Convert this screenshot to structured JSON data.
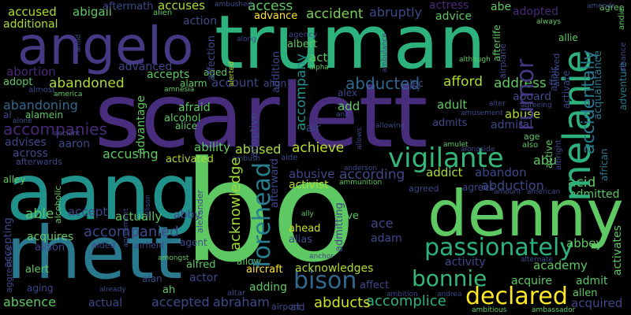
{
  "words": [
    {
      "text": "bo",
      "color": "#5ec962"
    },
    {
      "text": "scarlett",
      "color": "#472d7b"
    },
    {
      "text": "truman",
      "color": "#2db27d"
    },
    {
      "text": "aang",
      "color": "#21918c"
    },
    {
      "text": "rhett",
      "color": "#2a788e"
    },
    {
      "text": "denny",
      "color": "#5ec962"
    },
    {
      "text": "angelo",
      "color": "#443983"
    },
    {
      "text": "melanie",
      "color": "#2db27d"
    },
    {
      "text": "vigilante",
      "color": "#35b779"
    },
    {
      "text": "forehead",
      "color": "#277f8e"
    },
    {
      "text": "passionately",
      "color": "#2db27d"
    },
    {
      "text": "bonnie",
      "color": "#35b779"
    },
    {
      "text": "declared",
      "color": "#fde725"
    },
    {
      "text": "bison",
      "color": "#31688e"
    },
    {
      "text": "rumor",
      "color": "#443983"
    },
    {
      "text": "accidentally",
      "color": "#2a788e"
    },
    {
      "text": "abducted",
      "color": "#31688e"
    },
    {
      "text": "accompanies",
      "color": "#482878"
    },
    {
      "text": "accompanied",
      "color": "#3e4989"
    },
    {
      "text": "accident",
      "color": "#7ad151"
    },
    {
      "text": "access",
      "color": "#5ec962"
    },
    {
      "text": "abandoned",
      "color": "#addc30"
    },
    {
      "text": "achieve",
      "color": "#bddf26"
    },
    {
      "text": "advance",
      "color": "#fde725"
    },
    {
      "text": "accuses",
      "color": "#addc30"
    },
    {
      "text": "acknowledges",
      "color": "#addc30"
    },
    {
      "text": "acknowledge",
      "color": "#9fda3a"
    },
    {
      "text": "accomplice",
      "color": "#2db27d"
    },
    {
      "text": "according",
      "color": "#3e4989"
    },
    {
      "text": "abduction",
      "color": "#3e4989"
    },
    {
      "text": "abducts",
      "color": "#cde11d"
    },
    {
      "text": "accepted",
      "color": "#3e4989"
    },
    {
      "text": "abraham",
      "color": "#3e4989"
    },
    {
      "text": "afford",
      "color": "#addc30"
    },
    {
      "text": "address",
      "color": "#5ec962"
    },
    {
      "text": "abruptly",
      "color": "#3e4989"
    },
    {
      "text": "abuse",
      "color": "#addc30"
    },
    {
      "text": "abused",
      "color": "#addc30"
    },
    {
      "text": "abusive",
      "color": "#3e4989"
    },
    {
      "text": "ability",
      "color": "#5ec962"
    },
    {
      "text": "abandoning",
      "color": "#31688e"
    },
    {
      "text": "accused",
      "color": "#addc30"
    },
    {
      "text": "abigail",
      "color": "#5ec962"
    },
    {
      "text": "additional",
      "color": "#addc30"
    },
    {
      "text": "aftermath",
      "color": "#3e4989"
    },
    {
      "text": "actress",
      "color": "#482878"
    },
    {
      "text": "abe",
      "color": "#5ec962"
    },
    {
      "text": "adopted",
      "color": "#482878"
    },
    {
      "text": "advice",
      "color": "#5ec962"
    },
    {
      "text": "abortion",
      "color": "#482878"
    },
    {
      "text": "adopt",
      "color": "#5ec962"
    },
    {
      "text": "advanced",
      "color": "#3e4989"
    },
    {
      "text": "accepts",
      "color": "#5ec962"
    },
    {
      "text": "account",
      "color": "#3e4989"
    },
    {
      "text": "action",
      "color": "#3e4989"
    },
    {
      "text": "accompany",
      "color": "#21918c"
    },
    {
      "text": "adult",
      "color": "#5ec962"
    },
    {
      "text": "admits",
      "color": "#3e4989"
    },
    {
      "text": "admiral",
      "color": "#3e4989"
    },
    {
      "text": "aboard",
      "color": "#3e4989"
    },
    {
      "text": "advises",
      "color": "#3e4989"
    },
    {
      "text": "aaron",
      "color": "#3e4989"
    },
    {
      "text": "across",
      "color": "#3e4989"
    },
    {
      "text": "accusing",
      "color": "#5ec962"
    },
    {
      "text": "activated",
      "color": "#addc30"
    },
    {
      "text": "afterwards",
      "color": "#3e4989"
    },
    {
      "text": "abu",
      "color": "#5ec962"
    },
    {
      "text": "abandon",
      "color": "#3e4989"
    },
    {
      "text": "activist",
      "color": "#addc30"
    },
    {
      "text": "addict",
      "color": "#addc30"
    },
    {
      "text": "acid",
      "color": "#5ec962"
    },
    {
      "text": "admitted",
      "color": "#5ec962"
    },
    {
      "text": "able",
      "color": "#5ec962"
    },
    {
      "text": "accept",
      "color": "#3e4989"
    },
    {
      "text": "actually",
      "color": "#5ec962"
    },
    {
      "text": "abby",
      "color": "#3e4989"
    },
    {
      "text": "acquires",
      "color": "#5ec962"
    },
    {
      "text": "alison",
      "color": "#3e4989"
    },
    {
      "text": "ace",
      "color": "#3e4989"
    },
    {
      "text": "adam",
      "color": "#3e4989"
    },
    {
      "text": "activity",
      "color": "#3e4989"
    },
    {
      "text": "academy",
      "color": "#5ec962"
    },
    {
      "text": "abbey",
      "color": "#5ec962"
    },
    {
      "text": "acquire",
      "color": "#5ec962"
    },
    {
      "text": "admit",
      "color": "#5ec962"
    },
    {
      "text": "activates",
      "color": "#5ec962"
    },
    {
      "text": "allen",
      "color": "#5ec962"
    },
    {
      "text": "acquired",
      "color": "#3e4989"
    },
    {
      "text": "absence",
      "color": "#5ec962"
    },
    {
      "text": "actual",
      "color": "#3e4989"
    },
    {
      "text": "adding",
      "color": "#5ec962"
    },
    {
      "text": "actor",
      "color": "#3e4989"
    },
    {
      "text": "affect",
      "color": "#3e4989"
    },
    {
      "text": "agent",
      "color": "#3e4989"
    },
    {
      "text": "alfred",
      "color": "#5ec962"
    },
    {
      "text": "alive",
      "color": "#5ec962"
    },
    {
      "text": "ahead",
      "color": "#cde11d"
    },
    {
      "text": "alias",
      "color": "#3e4989"
    },
    {
      "text": "aircraft",
      "color": "#fde725"
    },
    {
      "text": "airport",
      "color": "#3e4989"
    },
    {
      "text": "afraid",
      "color": "#5ec962"
    },
    {
      "text": "alcohol",
      "color": "#5ec962"
    },
    {
      "text": "alice",
      "color": "#5ec962"
    },
    {
      "text": "alarm",
      "color": "#5ec962"
    },
    {
      "text": "act",
      "color": "#5ec962"
    },
    {
      "text": "albert",
      "color": "#5ec962"
    },
    {
      "text": "align",
      "color": "#3e4989"
    },
    {
      "text": "alex",
      "color": "#3e4989"
    },
    {
      "text": "alec",
      "color": "#3e4989"
    },
    {
      "text": "add",
      "color": "#5ec962"
    },
    {
      "text": "air",
      "color": "#3e4989"
    },
    {
      "text": "alert",
      "color": "#5ec962"
    },
    {
      "text": "aging",
      "color": "#3e4989"
    },
    {
      "text": "alan",
      "color": "#3e4989"
    },
    {
      "text": "ah",
      "color": "#5ec962"
    },
    {
      "text": "aid",
      "color": "#3e4989"
    },
    {
      "text": "aided",
      "color": "#3e4989"
    },
    {
      "text": "alley",
      "color": "#5ec962"
    },
    {
      "text": "airfield",
      "color": "#3e4989"
    },
    {
      "text": "aged",
      "color": "#5ec962"
    },
    {
      "text": "alamein",
      "color": "#5ec962"
    },
    {
      "text": "alone",
      "color": "#3e4989"
    },
    {
      "text": "al",
      "color": "#3e4989"
    },
    {
      "text": "almost",
      "color": "#3e4989"
    },
    {
      "text": "alien",
      "color": "#5ec962"
    },
    {
      "text": "agreed",
      "color": "#3e4989"
    },
    {
      "text": "agrees",
      "color": "#3e4989"
    },
    {
      "text": "altar",
      "color": "#3e4989"
    },
    {
      "text": "allow",
      "color": "#5ec962"
    },
    {
      "text": "agency",
      "color": "#3e4989"
    },
    {
      "text": "along",
      "color": "#3e4989"
    },
    {
      "text": "alpha",
      "color": "#5ec962"
    },
    {
      "text": "although",
      "color": "#5ec962"
    },
    {
      "text": "age",
      "color": "#5ec962"
    },
    {
      "text": "also",
      "color": "#5ec962"
    },
    {
      "text": "allie",
      "color": "#5ec962"
    },
    {
      "text": "agree",
      "color": "#5ec962"
    },
    {
      "text": "always",
      "color": "#5ec962"
    },
    {
      "text": "aide",
      "color": "#3e4989"
    },
    {
      "text": "ally",
      "color": "#5ec962"
    },
    {
      "text": "alter",
      "color": "#3e4989"
    },
    {
      "text": "andrea",
      "color": "#3e4989"
    },
    {
      "text": "ambition",
      "color": "#3e4989"
    },
    {
      "text": "ambitious",
      "color": "#5ec962"
    },
    {
      "text": "ambassador",
      "color": "#5ec962"
    },
    {
      "text": "alternate",
      "color": "#3e4989"
    },
    {
      "text": "amount",
      "color": "#3e4989"
    },
    {
      "text": "american",
      "color": "#3e4989"
    },
    {
      "text": "amulet",
      "color": "#5ec962"
    },
    {
      "text": "alongside",
      "color": "#3e4989"
    },
    {
      "text": "anderson",
      "color": "#3e4989"
    },
    {
      "text": "ammunition",
      "color": "#5ec962"
    },
    {
      "text": "amy",
      "color": "#3e4989"
    },
    {
      "text": "ana",
      "color": "#3e4989"
    },
    {
      "text": "amusement",
      "color": "#3e4989"
    },
    {
      "text": "allowing",
      "color": "#3e4989"
    },
    {
      "text": "agreeing",
      "color": "#3e4989"
    },
    {
      "text": "amongst",
      "color": "#5ec962"
    },
    {
      "text": "amnesia",
      "color": "#5ec962"
    },
    {
      "text": "america",
      "color": "#5ec962"
    },
    {
      "text": "ancient",
      "color": "#3e4989"
    },
    {
      "text": "already",
      "color": "#3e4989"
    },
    {
      "text": "amid",
      "color": "#3e4989"
    },
    {
      "text": "ambulance",
      "color": "#3e4989"
    },
    {
      "text": "amends",
      "color": "#3e4989"
    },
    {
      "text": "ambushed",
      "color": "#3e4989"
    },
    {
      "text": "ambush",
      "color": "#3e4989"
    },
    {
      "text": "anchor",
      "color": "#3e4989"
    },
    {
      "text": "adventure",
      "color": "#2a788e"
    },
    {
      "text": "alliance",
      "color": "#3e4989"
    },
    {
      "text": "andie",
      "color": "#5ec962"
    },
    {
      "text": "african",
      "color": "#2a788e"
    },
    {
      "text": "acquaintance",
      "color": "#2a788e"
    },
    {
      "text": "allowed",
      "color": "#3e4989"
    },
    {
      "text": "activate",
      "color": "#3e4989"
    },
    {
      "text": "active",
      "color": "#5ec962"
    },
    {
      "text": "affair",
      "color": "#3e4989"
    },
    {
      "text": "albright",
      "color": "#3e4989"
    },
    {
      "text": "afterlife",
      "color": "#5ec962"
    },
    {
      "text": "airplane",
      "color": "#3e4989"
    },
    {
      "text": "alerted",
      "color": "#addc30"
    },
    {
      "text": "addition",
      "color": "#3e4989"
    },
    {
      "text": "affection",
      "color": "#3e4989"
    },
    {
      "text": "adoptive",
      "color": "#3e4989"
    },
    {
      "text": "advantage",
      "color": "#5ec962"
    },
    {
      "text": "alexander",
      "color": "#3e4989"
    },
    {
      "text": "allison",
      "color": "#3e4989"
    },
    {
      "text": "agreement",
      "color": "#3e4989"
    },
    {
      "text": "alcoholic",
      "color": "#5ec962"
    },
    {
      "text": "accepting",
      "color": "#3e4989"
    },
    {
      "text": "aggressive",
      "color": "#3e4989"
    },
    {
      "text": "afterward",
      "color": "#3e4989"
    },
    {
      "text": "allows",
      "color": "#3e4989"
    },
    {
      "text": "admitting",
      "color": "#3e4989"
    },
    {
      "text": "advanced",
      "color": "#3e4989"
    }
  ]
}
